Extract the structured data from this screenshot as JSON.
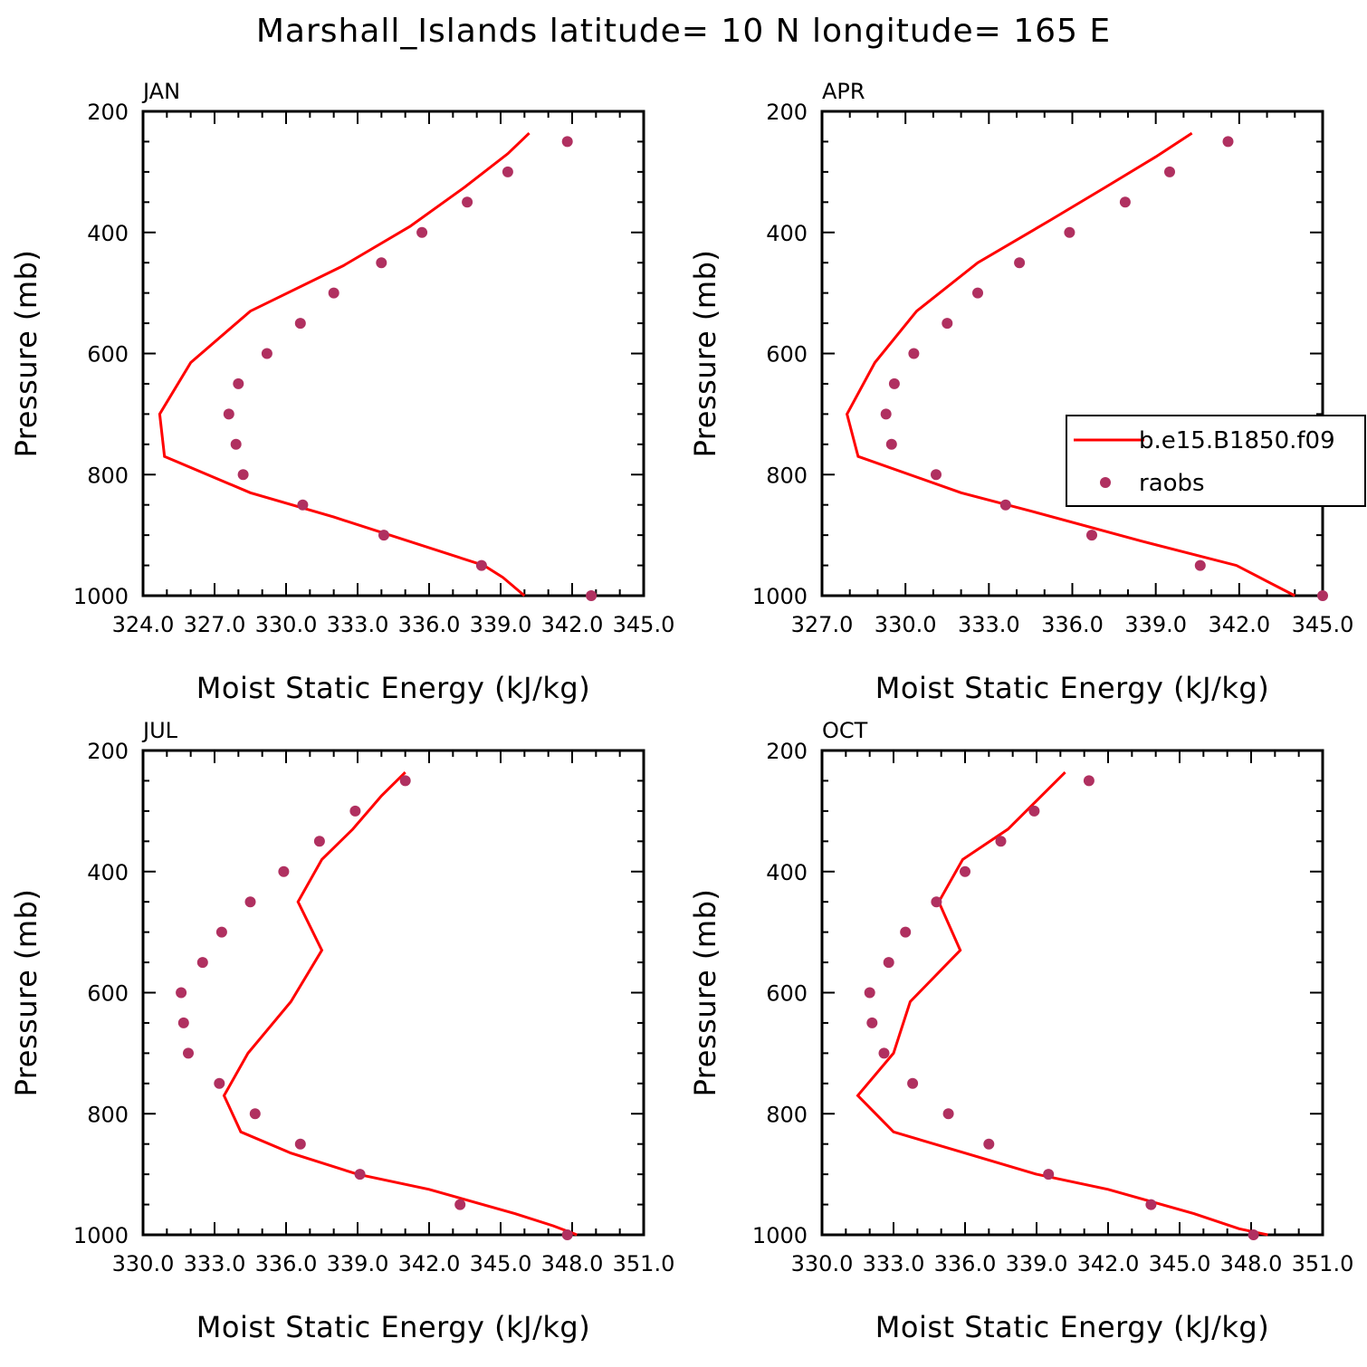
{
  "title": "Marshall_Islands  latitude= 10 N longitude= 165 E",
  "colors": {
    "model": "#ff0000",
    "obs": "#b03060",
    "axis": "#000000"
  },
  "legend": {
    "entries": [
      "b.e15.B1850.f09",
      "raobs"
    ],
    "panel": 1
  },
  "chart_data": [
    {
      "type": "line",
      "label": "JAN",
      "xlabel": "Moist Static Energy (kJ/kg)",
      "ylabel": "Pressure (mb)",
      "xlim": [
        324.0,
        345.0
      ],
      "ylim": [
        200,
        1000
      ],
      "y_inverted": true,
      "xtick_labels": [
        "324.0",
        "327.0",
        "330.0",
        "333.0",
        "336.0",
        "339.0",
        "342.0",
        "345.0"
      ],
      "ytick_labels": [
        "200",
        "400",
        "600",
        "800",
        "1000"
      ],
      "series": [
        {
          "name": "b.e15.B1850.f09",
          "kind": "line",
          "x": [
            340.2,
            339.3,
            337.5,
            335.2,
            332.4,
            328.5,
            326.0,
            324.7,
            324.9,
            328.5,
            332.0,
            338.3,
            339.1,
            340.0
          ],
          "y": [
            236,
            270,
            325,
            390,
            455,
            530,
            615,
            700,
            770,
            830,
            870,
            950,
            970,
            1000
          ]
        },
        {
          "name": "raobs",
          "kind": "scatter",
          "x": [
            341.8,
            339.3,
            337.6,
            335.7,
            334.0,
            332.0,
            330.6,
            329.2,
            328.0,
            327.6,
            327.9,
            328.2,
            330.7,
            334.1,
            338.2,
            342.8
          ],
          "y": [
            250,
            300,
            350,
            400,
            450,
            500,
            550,
            600,
            650,
            700,
            750,
            800,
            850,
            900,
            950,
            1000
          ]
        }
      ]
    },
    {
      "type": "line",
      "label": "APR",
      "xlabel": "Moist Static Energy (kJ/kg)",
      "ylabel": "Pressure (mb)",
      "xlim": [
        327.0,
        345.0
      ],
      "ylim": [
        200,
        1000
      ],
      "y_inverted": true,
      "xtick_labels": [
        "327.0",
        "330.0",
        "333.0",
        "336.0",
        "339.0",
        "342.0",
        "345.0"
      ],
      "ytick_labels": [
        "200",
        "400",
        "600",
        "800",
        "1000"
      ],
      "series": [
        {
          "name": "b.e15.B1850.f09",
          "kind": "line",
          "x": [
            340.3,
            339.0,
            337.2,
            335.2,
            332.6,
            330.4,
            328.9,
            327.9,
            328.3,
            332.0,
            334.5,
            338.5,
            341.9,
            344.0
          ],
          "y": [
            236,
            275,
            325,
            380,
            450,
            530,
            615,
            700,
            770,
            830,
            860,
            910,
            950,
            1000
          ]
        },
        {
          "name": "raobs",
          "kind": "scatter",
          "x": [
            341.6,
            339.5,
            337.9,
            335.9,
            334.1,
            332.6,
            331.5,
            330.3,
            329.6,
            329.3,
            329.5,
            331.1,
            333.6,
            336.7,
            340.6,
            345.0
          ],
          "y": [
            250,
            300,
            350,
            400,
            450,
            500,
            550,
            600,
            650,
            700,
            750,
            800,
            850,
            900,
            950,
            1000
          ]
        }
      ]
    },
    {
      "type": "line",
      "label": "JUL",
      "xlabel": "Moist Static Energy (kJ/kg)",
      "ylabel": "Pressure (mb)",
      "xlim": [
        330.0,
        351.0
      ],
      "ylim": [
        200,
        1000
      ],
      "y_inverted": true,
      "xtick_labels": [
        "330.0",
        "333.0",
        "336.0",
        "339.0",
        "342.0",
        "345.0",
        "348.0",
        "351.0"
      ],
      "ytick_labels": [
        "200",
        "400",
        "600",
        "800",
        "1000"
      ],
      "series": [
        {
          "name": "b.e15.B1850.f09",
          "kind": "line",
          "x": [
            341.0,
            340.0,
            338.8,
            337.5,
            336.5,
            337.5,
            336.2,
            334.4,
            333.4,
            334.1,
            336.2,
            339.0,
            342.0,
            345.6,
            347.2,
            348.2
          ],
          "y": [
            236,
            275,
            330,
            380,
            450,
            530,
            615,
            700,
            770,
            830,
            865,
            900,
            925,
            965,
            985,
            1000
          ]
        },
        {
          "name": "raobs",
          "kind": "scatter",
          "x": [
            341.0,
            338.9,
            337.4,
            335.9,
            334.5,
            333.3,
            332.5,
            331.6,
            331.7,
            331.9,
            333.2,
            334.7,
            336.6,
            339.1,
            343.3,
            347.8
          ],
          "y": [
            250,
            300,
            350,
            400,
            450,
            500,
            550,
            600,
            650,
            700,
            750,
            800,
            850,
            900,
            950,
            1000
          ]
        }
      ]
    },
    {
      "type": "line",
      "label": "OCT",
      "xlabel": "Moist Static Energy (kJ/kg)",
      "ylabel": "Pressure (mb)",
      "xlim": [
        330.0,
        351.0
      ],
      "ylim": [
        200,
        1000
      ],
      "y_inverted": true,
      "xtick_labels": [
        "330.0",
        "333.0",
        "336.0",
        "339.0",
        "342.0",
        "345.0",
        "348.0",
        "351.0"
      ],
      "ytick_labels": [
        "200",
        "400",
        "600",
        "800",
        "1000"
      ],
      "series": [
        {
          "name": "b.e15.B1850.f09",
          "kind": "line",
          "x": [
            340.2,
            337.8,
            335.9,
            334.9,
            335.8,
            333.7,
            333.0,
            331.5,
            333.0,
            336.0,
            339.0,
            342.0,
            345.6,
            347.5,
            348.7
          ],
          "y": [
            236,
            330,
            380,
            450,
            530,
            615,
            700,
            770,
            830,
            865,
            900,
            925,
            965,
            990,
            1000
          ]
        },
        {
          "name": "raobs",
          "kind": "scatter",
          "x": [
            341.2,
            338.9,
            337.5,
            336.0,
            334.8,
            333.5,
            332.8,
            332.0,
            332.1,
            332.6,
            333.8,
            335.3,
            337.0,
            339.5,
            343.8,
            348.1
          ],
          "y": [
            250,
            300,
            350,
            400,
            450,
            500,
            550,
            600,
            650,
            700,
            750,
            800,
            850,
            900,
            950,
            1000
          ]
        }
      ]
    }
  ]
}
